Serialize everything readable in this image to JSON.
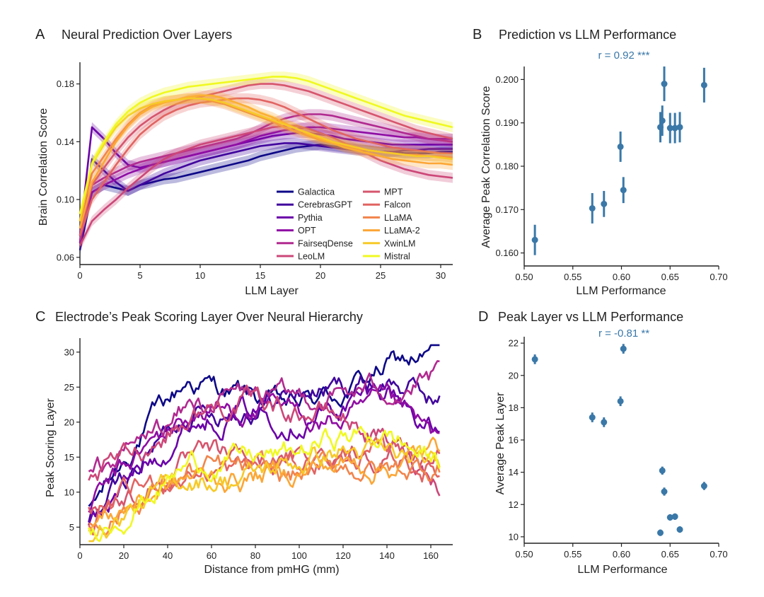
{
  "colors": {
    "Galactica": "#0d0887",
    "CerebrasGPT": "#41049d",
    "Pythia": "#6a00a8",
    "OPT": "#8f0da4",
    "FairseqDense": "#b12a90",
    "LeoLM": "#cc4778",
    "MPT": "#d6556d",
    "Falcon": "#e16462",
    "LLaMA": "#f2844b",
    "LLaMA-2": "#fca636",
    "XwinLM": "#f7c928",
    "Mistral": "#f0f921",
    "scatter": "#3a78a8"
  },
  "chart_data": [
    {
      "panel": "A",
      "type": "line",
      "title": "Neural Prediction Over Layers",
      "xlabel": "LLM Layer",
      "ylabel": "Brain Correlation Score",
      "xlim": [
        0,
        31
      ],
      "ylim": [
        0.055,
        0.195
      ],
      "xticks": [
        0,
        5,
        10,
        15,
        20,
        25,
        30
      ],
      "yticks": [
        0.06,
        0.1,
        0.14,
        0.18
      ],
      "ytick_labels": [
        "0.06",
        "0.10",
        "0.14",
        "0.18"
      ],
      "legend_position": "lower-right",
      "series": [
        {
          "name": "Galactica",
          "y": [
            0.065,
            0.105,
            0.11,
            0.108,
            0.106,
            0.11,
            0.112,
            0.114,
            0.115,
            0.117,
            0.119,
            0.121,
            0.123,
            0.125,
            0.127,
            0.13,
            0.132,
            0.134,
            0.136,
            0.137,
            0.138,
            0.137,
            0.136,
            0.135,
            0.134,
            0.133,
            0.133,
            0.132,
            0.132,
            0.132,
            0.133,
            0.133
          ]
        },
        {
          "name": "CerebrasGPT",
          "y": [
            0.07,
            0.128,
            0.12,
            0.112,
            0.106,
            0.11,
            0.114,
            0.118,
            0.121,
            0.124,
            0.127,
            0.129,
            0.131,
            0.133,
            0.135,
            0.137,
            0.138,
            0.139,
            0.139,
            0.138,
            0.137,
            0.136,
            0.135,
            0.134,
            0.134,
            0.133,
            0.133,
            0.134,
            0.134,
            0.135,
            0.135,
            0.135
          ]
        },
        {
          "name": "Pythia",
          "y": [
            0.075,
            0.15,
            0.142,
            0.132,
            0.124,
            0.122,
            0.124,
            0.126,
            0.128,
            0.13,
            0.132,
            0.134,
            0.136,
            0.138,
            0.14,
            0.142,
            0.144,
            0.145,
            0.146,
            0.146,
            0.145,
            0.144,
            0.142,
            0.141,
            0.14,
            0.139,
            0.138,
            0.138,
            0.138,
            0.138,
            0.138,
            0.138
          ]
        },
        {
          "name": "OPT",
          "y": [
            0.07,
            0.105,
            0.11,
            0.114,
            0.118,
            0.121,
            0.124,
            0.126,
            0.128,
            0.13,
            0.132,
            0.134,
            0.136,
            0.138,
            0.141,
            0.144,
            0.146,
            0.148,
            0.149,
            0.15,
            0.15,
            0.149,
            0.148,
            0.147,
            0.146,
            0.145,
            0.144,
            0.143,
            0.143,
            0.142,
            0.142,
            0.142
          ]
        },
        {
          "name": "FairseqDense",
          "y": [
            0.072,
            0.11,
            0.115,
            0.119,
            0.123,
            0.126,
            0.128,
            0.13,
            0.132,
            0.134,
            0.136,
            0.138,
            0.14,
            0.142,
            0.145,
            0.149,
            0.153,
            0.156,
            0.158,
            0.159,
            0.159,
            0.158,
            0.156,
            0.154,
            0.152,
            0.15,
            0.148,
            0.146,
            0.144,
            0.142,
            0.141,
            0.14
          ]
        },
        {
          "name": "LeoLM",
          "y": [
            0.068,
            0.085,
            0.093,
            0.1,
            0.108,
            0.115,
            0.122,
            0.128,
            0.132,
            0.135,
            0.138,
            0.14,
            0.142,
            0.144,
            0.146,
            0.148,
            0.15,
            0.151,
            0.151,
            0.149,
            0.146,
            0.143,
            0.139,
            0.135,
            0.131,
            0.127,
            0.124,
            0.121,
            0.119,
            0.117,
            0.116,
            0.115
          ]
        },
        {
          "name": "MPT",
          "y": [
            0.075,
            0.11,
            0.122,
            0.133,
            0.143,
            0.151,
            0.157,
            0.162,
            0.166,
            0.169,
            0.171,
            0.173,
            0.175,
            0.177,
            0.179,
            0.18,
            0.18,
            0.179,
            0.177,
            0.175,
            0.172,
            0.169,
            0.166,
            0.163,
            0.16,
            0.157,
            0.154,
            0.151,
            0.148,
            0.146,
            0.144,
            0.142
          ]
        },
        {
          "name": "Falcon",
          "y": [
            0.075,
            0.1,
            0.112,
            0.124,
            0.135,
            0.145,
            0.152,
            0.158,
            0.162,
            0.165,
            0.167,
            0.168,
            0.169,
            0.17,
            0.17,
            0.169,
            0.167,
            0.164,
            0.16,
            0.156,
            0.152,
            0.148,
            0.145,
            0.142,
            0.14,
            0.138,
            0.136,
            0.135,
            0.134,
            0.133,
            0.132,
            0.132
          ]
        },
        {
          "name": "LLaMA",
          "y": [
            0.085,
            0.118,
            0.13,
            0.142,
            0.152,
            0.16,
            0.165,
            0.168,
            0.169,
            0.17,
            0.17,
            0.168,
            0.166,
            0.163,
            0.16,
            0.157,
            0.154,
            0.15,
            0.147,
            0.144,
            0.141,
            0.139,
            0.137,
            0.135,
            0.134,
            0.133,
            0.132,
            0.131,
            0.131,
            0.13,
            0.13,
            0.129
          ]
        },
        {
          "name": "LLaMA-2",
          "y": [
            0.08,
            0.112,
            0.126,
            0.14,
            0.151,
            0.159,
            0.164,
            0.167,
            0.169,
            0.171,
            0.172,
            0.172,
            0.17,
            0.167,
            0.164,
            0.16,
            0.157,
            0.153,
            0.149,
            0.145,
            0.142,
            0.139,
            0.136,
            0.134,
            0.132,
            0.13,
            0.128,
            0.127,
            0.126,
            0.125,
            0.125,
            0.124
          ]
        },
        {
          "name": "XwinLM",
          "y": [
            0.085,
            0.125,
            0.138,
            0.15,
            0.158,
            0.163,
            0.166,
            0.168,
            0.169,
            0.17,
            0.17,
            0.169,
            0.167,
            0.164,
            0.161,
            0.158,
            0.155,
            0.152,
            0.149,
            0.146,
            0.143,
            0.14,
            0.138,
            0.136,
            0.134,
            0.133,
            0.132,
            0.131,
            0.13,
            0.13,
            0.129,
            0.128
          ]
        },
        {
          "name": "Mistral",
          "y": [
            0.09,
            0.125,
            0.14,
            0.152,
            0.161,
            0.167,
            0.171,
            0.174,
            0.176,
            0.178,
            0.179,
            0.18,
            0.181,
            0.182,
            0.183,
            0.184,
            0.185,
            0.185,
            0.184,
            0.182,
            0.179,
            0.176,
            0.173,
            0.17,
            0.167,
            0.164,
            0.161,
            0.158,
            0.156,
            0.154,
            0.152,
            0.15
          ]
        }
      ]
    },
    {
      "panel": "B",
      "type": "scatter",
      "title": "Prediction vs LLM Performance",
      "annotation": "r = 0.92 ***",
      "xlabel": "LLM Performance",
      "ylabel": "Average Peak Correlation Score",
      "xlim": [
        0.5,
        0.7
      ],
      "ylim": [
        0.157,
        0.203
      ],
      "xticks": [
        0.5,
        0.55,
        0.6,
        0.65,
        0.7
      ],
      "xtick_labels": [
        "0.50",
        "0.55",
        "0.60",
        "0.65",
        "0.70"
      ],
      "yticks": [
        0.16,
        0.17,
        0.18,
        0.19,
        0.2
      ],
      "ytick_labels": [
        "0.160",
        "0.170",
        "0.180",
        "0.190",
        "0.200"
      ],
      "points": [
        {
          "x": 0.511,
          "y": 0.163,
          "err": 0.0035
        },
        {
          "x": 0.57,
          "y": 0.1703,
          "err": 0.0035
        },
        {
          "x": 0.582,
          "y": 0.1713,
          "err": 0.003
        },
        {
          "x": 0.599,
          "y": 0.1845,
          "err": 0.0035
        },
        {
          "x": 0.602,
          "y": 0.1745,
          "err": 0.003
        },
        {
          "x": 0.64,
          "y": 0.189,
          "err": 0.0035
        },
        {
          "x": 0.642,
          "y": 0.1905,
          "err": 0.0035
        },
        {
          "x": 0.644,
          "y": 0.199,
          "err": 0.004
        },
        {
          "x": 0.65,
          "y": 0.1888,
          "err": 0.0035
        },
        {
          "x": 0.655,
          "y": 0.1888,
          "err": 0.0035
        },
        {
          "x": 0.66,
          "y": 0.189,
          "err": 0.0035
        },
        {
          "x": 0.685,
          "y": 0.1987,
          "err": 0.004
        }
      ]
    },
    {
      "panel": "C",
      "type": "line",
      "title": "Electrode’s Peak Scoring Layer Over Neural Hierarchy",
      "xlabel": "Distance from pmHG (mm)",
      "ylabel": "Peak Scoring Layer",
      "xlim": [
        0,
        170
      ],
      "ylim": [
        2.5,
        32
      ],
      "xticks": [
        0,
        20,
        40,
        60,
        80,
        100,
        120,
        140,
        160
      ],
      "yticks": [
        5,
        10,
        15,
        20,
        25,
        30
      ]
    },
    {
      "panel": "D",
      "type": "scatter",
      "title": "Peak Layer vs LLM Performance",
      "annotation": "r = -0.81 **",
      "xlabel": "LLM Performance",
      "ylabel": "Average Peak Layer",
      "xlim": [
        0.5,
        0.7
      ],
      "ylim": [
        9.6,
        22.4
      ],
      "xticks": [
        0.5,
        0.55,
        0.6,
        0.65,
        0.7
      ],
      "xtick_labels": [
        "0.50",
        "0.55",
        "0.60",
        "0.65",
        "0.70"
      ],
      "yticks": [
        10,
        12,
        14,
        16,
        18,
        20,
        22
      ],
      "points": [
        {
          "x": 0.511,
          "y": 21.0,
          "err": 0.3
        },
        {
          "x": 0.57,
          "y": 17.4,
          "err": 0.3
        },
        {
          "x": 0.582,
          "y": 17.1,
          "err": 0.3
        },
        {
          "x": 0.599,
          "y": 18.4,
          "err": 0.3
        },
        {
          "x": 0.602,
          "y": 21.65,
          "err": 0.3
        },
        {
          "x": 0.64,
          "y": 10.25,
          "err": 0.2
        },
        {
          "x": 0.642,
          "y": 14.1,
          "err": 0.25
        },
        {
          "x": 0.644,
          "y": 12.8,
          "err": 0.25
        },
        {
          "x": 0.65,
          "y": 11.2,
          "err": 0.2
        },
        {
          "x": 0.655,
          "y": 11.25,
          "err": 0.2
        },
        {
          "x": 0.66,
          "y": 10.45,
          "err": 0.2
        },
        {
          "x": 0.685,
          "y": 13.15,
          "err": 0.25
        }
      ]
    }
  ],
  "panels": {
    "A": {
      "letter": "A",
      "title": "Neural Prediction Over Layers",
      "xlabel": "LLM Layer",
      "ylabel": "Brain Correlation Score"
    },
    "B": {
      "letter": "B",
      "title": "Prediction vs LLM Performance",
      "xlabel": "LLM Performance",
      "ylabel": "Average Peak Correlation Score",
      "annotation": "r = 0.92 ***"
    },
    "C": {
      "letter": "C",
      "title": "Electrode’s Peak Scoring Layer Over Neural Hierarchy",
      "xlabel": "Distance from pmHG (mm)",
      "ylabel": "Peak Scoring Layer"
    },
    "D": {
      "letter": "D",
      "title": "Peak Layer vs LLM Performance",
      "xlabel": "LLM Performance",
      "ylabel": "Average Peak Layer",
      "annotation": "r = -0.81 **"
    }
  }
}
